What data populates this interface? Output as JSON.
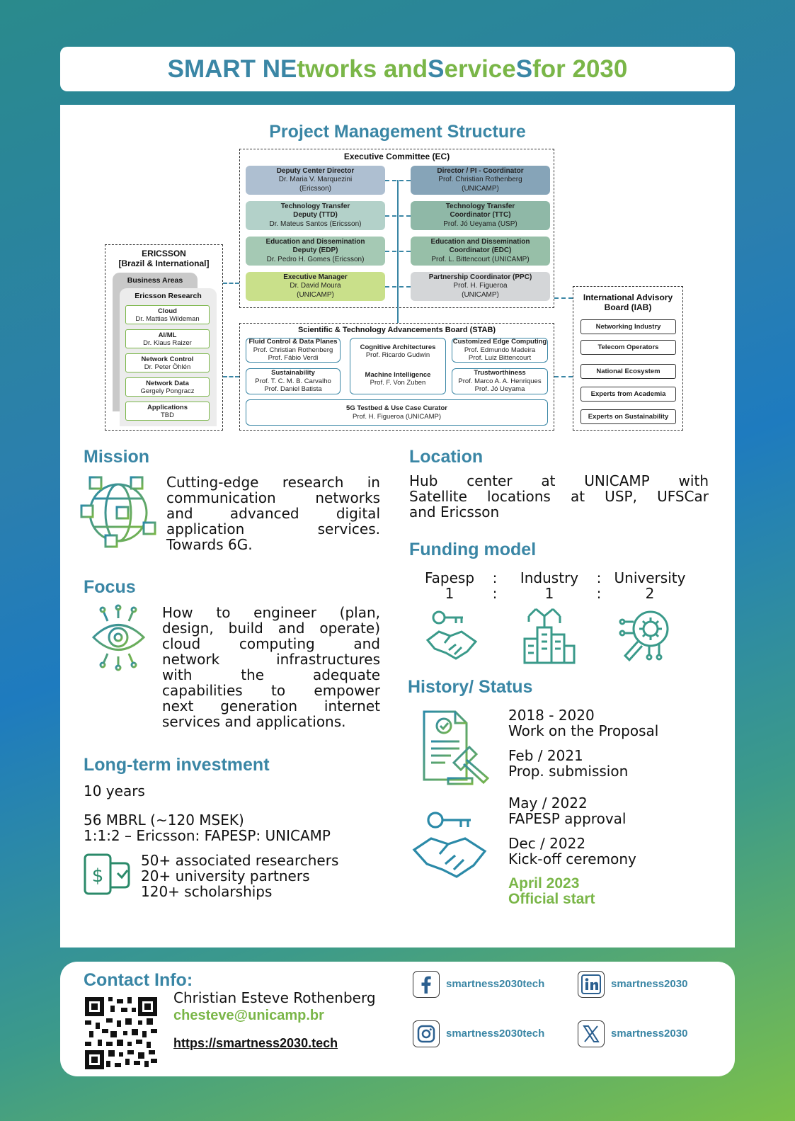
{
  "title": {
    "part1": "SMART NE",
    "part2": "tworks and  ",
    "part3": "S",
    "part4": "ervice",
    "part5": "S",
    "part6": " for 2030"
  },
  "org": {
    "title": "Project Management Structure",
    "ec_title": "Executive Committee (EC)",
    "roles": [
      {
        "title": "Deputy Center Director",
        "name": "Dr. Maria V. Marquezini",
        "org": "(Ericsson)"
      },
      {
        "title": "Director / PI - Coordinator",
        "name": "Prof. Christian Rothenberg",
        "org": "(UNICAMP)"
      },
      {
        "title": "Technology Transfer",
        "title2": "Deputy (TTD)",
        "name": "Dr. Mateus Santos (Ericsson)"
      },
      {
        "title": "Technology Transfer",
        "title2": "Coordinator (TTC)",
        "name": "Prof. Jó Ueyama (USP)"
      },
      {
        "title": "Education and Dissemination",
        "title2": "Deputy (EDP)",
        "name": "Dr. Pedro H. Gomes (Ericsson)"
      },
      {
        "title": "Education and Dissemination",
        "title2": "Coordinator (EDC)",
        "name": "Prof. L. Bittencourt (UNICAMP)"
      },
      {
        "title": "Executive Manager",
        "name": "Dr. David Moura",
        "org": "(UNICAMP)"
      },
      {
        "title": "Partnership Coordinator (PPC)",
        "name": "Prof. H. Figueroa",
        "org": "(UNICAMP)"
      }
    ],
    "ericsson": {
      "title1": "ERICSSON",
      "title2": "[Brazil & International]",
      "business_areas": "Business Areas",
      "research": "Ericsson Research",
      "items": [
        {
          "title": "Cloud",
          "name": "Dr. Mattias Wildeman"
        },
        {
          "title": "AI/ML",
          "name": "Dr. Klaus Raizer"
        },
        {
          "title": "Network Control",
          "name": "Dr. Peter Öhlén"
        },
        {
          "title": "Network Data",
          "name": "Gergely Pongracz"
        },
        {
          "title": "Applications",
          "name": "TBD"
        }
      ]
    },
    "stab": {
      "title": "Scientific & Technology Advancements Board (STAB)",
      "boxes": [
        {
          "title": "Fluid Control & Data Planes",
          "l1": "Prof. Christian Rothenberg",
          "l2": "Prof. Fábio Verdi"
        },
        {
          "title": "Cognitive Architectures",
          "l1": "Prof. Ricardo Gudwin",
          "l2": ""
        },
        {
          "title": "Customized Edge Computing",
          "l1": "Prof. Edmundo Madeira",
          "l2": "Prof. Luiz Bittencourt"
        },
        {
          "title": "Sustainability",
          "l1": "Prof. T. C. M. B. Carvalho",
          "l2": "Prof. Daniel Batista"
        },
        {
          "title": "Machine Intelligence",
          "l1": "Prof. F. Von Zuben",
          "l2": ""
        },
        {
          "title": "Trustworthiness",
          "l1": "Prof. Marco A. A. Henriques",
          "l2": "Prof. Jó Ueyama"
        },
        {
          "title": "5G Testbed & Use Case Curator",
          "l1": "Prof. H. Figueroa (UNICAMP)",
          "l2": ""
        }
      ]
    },
    "iab": {
      "title1": "International Advisory",
      "title2": "Board (IAB)",
      "items": [
        "Networking Industry",
        "Telecom Operators",
        "National Ecosystem",
        "Experts from Academia",
        "Experts on Sustainability"
      ]
    }
  },
  "mission": {
    "heading": "Mission",
    "lines": [
      "Cutting-edge research in",
      "communication networks",
      "and advanced digital",
      "application services.",
      "Towards 6G."
    ]
  },
  "focus": {
    "heading": "Focus",
    "lines": [
      "How to engineer (plan,",
      "design, build and operate)",
      "cloud computing and",
      "network infrastructures",
      "with the adequate",
      "capabilities to empower",
      "next generation internet",
      "services and applications."
    ]
  },
  "investment": {
    "heading": "Long-term investment",
    "years": "10 years",
    "amount": "56 MBRL (~120 MSEK)",
    "ratio": "1:1:2 – Ericsson: FAPESP:  UNICAMP",
    "stats": [
      "50+ associated researchers",
      "20+ university partners",
      "120+ scholarships"
    ]
  },
  "location": {
    "heading": "Location",
    "lines": [
      "Hub center at UNICAMP with",
      "Satellite locations at USP, UFSCar",
      "and Ericsson"
    ]
  },
  "funding": {
    "heading": "Funding model",
    "parts": [
      {
        "name": "Fapesp",
        "ratio": "1"
      },
      {
        "name": "Industry",
        "ratio": "1"
      },
      {
        "name": "University",
        "ratio": "2"
      }
    ],
    "sep": ":"
  },
  "history": {
    "heading": "History/ Status",
    "events": [
      {
        "date": "2018 - 2020",
        "text": "Work on the Proposal"
      },
      {
        "date": "Feb / 2021",
        "text": "Prop. submission"
      },
      {
        "date": "May / 2022",
        "text": "FAPESP approval"
      },
      {
        "date": "Dec / 2022",
        "text": "Kick-off ceremony"
      }
    ],
    "final_date": "April 2023",
    "final_text": "Official start"
  },
  "contact": {
    "heading": "Contact Info:",
    "name": "Christian Esteve Rothenberg",
    "email": "chesteve@unicamp.br",
    "url": "https://smartness2030.tech",
    "social": [
      {
        "icon": "facebook-icon",
        "handle": "smartness2030tech"
      },
      {
        "icon": "linkedin-icon",
        "handle": "smartness2030"
      },
      {
        "icon": "instagram-icon",
        "handle": "smartness2030tech"
      },
      {
        "icon": "x-icon",
        "handle": "smartness2030"
      }
    ]
  },
  "colors": {
    "blue": "#3a86a5",
    "green": "#7ab648"
  }
}
